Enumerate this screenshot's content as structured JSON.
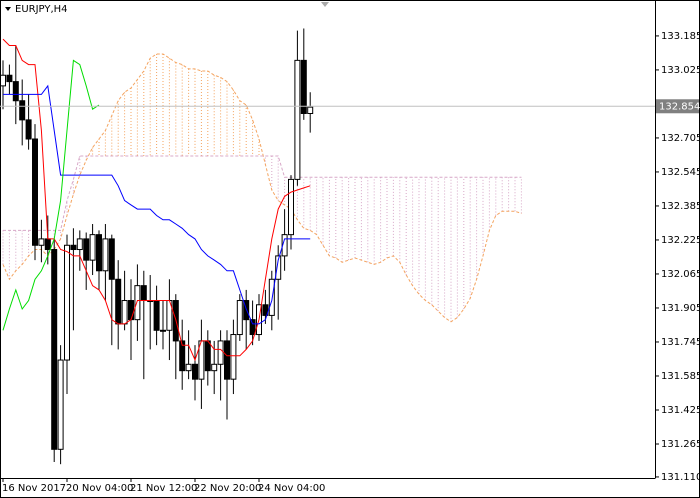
{
  "chart_data": {
    "type": "candlestick",
    "title": "EURJPY,H4",
    "categories": [
      "16 Nov 2017",
      null,
      null,
      null,
      null,
      null,
      null,
      null,
      null,
      null,
      "20 Nov 04:00",
      null,
      null,
      null,
      null,
      null,
      null,
      null,
      null,
      null,
      "21 Nov 12:00",
      null,
      null,
      null,
      null,
      null,
      null,
      null,
      null,
      null,
      "22 Nov 20:00",
      null,
      null,
      null,
      null,
      null,
      null,
      null,
      null,
      null,
      "24 Nov 04:00",
      null,
      null,
      null,
      null,
      null,
      null,
      null,
      null,
      null,
      null,
      null,
      null,
      null,
      null,
      null,
      null,
      null,
      null,
      null,
      null,
      null,
      null,
      null,
      null,
      null,
      null,
      null,
      null,
      null,
      null,
      null,
      null,
      null,
      null,
      null,
      null,
      null,
      null,
      null,
      null,
      null
    ],
    "open": [
      132.95,
      133.0,
      132.97,
      132.88,
      132.79,
      132.7,
      132.2,
      132.23,
      132.18,
      131.24,
      131.66,
      132.2,
      132.18,
      132.23,
      132.13,
      132.25,
      132.08,
      132.23,
      132.04,
      131.83,
      131.94,
      131.85,
      132.01,
      131.94,
      131.94,
      131.8,
      131.8,
      131.94,
      131.75,
      131.61,
      131.64,
      131.57,
      131.75,
      131.61,
      131.64,
      131.75,
      131.57,
      131.78,
      131.94,
      131.85,
      131.78,
      131.92,
      131.87,
      132.04,
      132.15,
      132.25,
      132.51,
      133.07,
      132.82,
      null,
      null,
      null,
      null,
      null,
      null,
      null,
      null,
      null,
      null,
      null,
      null,
      null,
      null,
      null,
      null,
      null,
      null,
      null,
      null,
      null,
      null,
      null,
      null,
      null,
      null,
      null,
      null,
      null,
      null,
      null,
      null,
      null
    ],
    "high": [
      133.07,
      133.05,
      133.14,
      132.98,
      132.91,
      132.77,
      132.32,
      132.34,
      132.23,
      131.73,
      132.25,
      132.28,
      132.27,
      132.26,
      132.3,
      132.27,
      132.3,
      132.25,
      132.13,
      132.08,
      132.04,
      132.11,
      132.08,
      132.06,
      132.01,
      131.94,
      132.04,
      131.97,
      131.85,
      131.8,
      131.73,
      131.85,
      131.8,
      131.75,
      131.8,
      131.8,
      131.85,
      131.97,
      131.99,
      131.94,
      131.97,
      131.99,
      132.08,
      132.2,
      132.37,
      132.53,
      133.21,
      133.22,
      132.92,
      null,
      null,
      null,
      null,
      null,
      null,
      null,
      null,
      null,
      null,
      null,
      null,
      null,
      null,
      null,
      null,
      null,
      null,
      null,
      null,
      null,
      null,
      null,
      null,
      null,
      null,
      null,
      null,
      null,
      null,
      null,
      null,
      null
    ],
    "low": [
      132.84,
      132.91,
      132.77,
      132.67,
      132.65,
      132.13,
      132.12,
      132.11,
      131.18,
      131.17,
      131.5,
      131.8,
      132.08,
      131.99,
      132.06,
      131.99,
      131.94,
      131.73,
      131.71,
      131.8,
      131.66,
      131.75,
      131.57,
      131.71,
      131.73,
      131.71,
      131.66,
      131.57,
      131.52,
      131.57,
      131.47,
      131.43,
      131.54,
      131.5,
      131.47,
      131.38,
      131.5,
      131.75,
      131.71,
      131.73,
      131.75,
      131.83,
      131.8,
      131.85,
      132.08,
      132.18,
      132.48,
      132.79,
      132.73,
      null,
      null,
      null,
      null,
      null,
      null,
      null,
      null,
      null,
      null,
      null,
      null,
      null,
      null,
      null,
      null,
      null,
      null,
      null,
      null,
      null,
      null,
      null,
      null,
      null,
      null,
      null,
      null,
      null,
      null,
      null,
      null,
      null
    ],
    "close": [
      133.0,
      132.97,
      132.88,
      132.79,
      132.7,
      132.2,
      132.23,
      132.18,
      131.24,
      131.66,
      132.2,
      132.18,
      132.23,
      132.13,
      132.25,
      132.08,
      132.23,
      132.04,
      131.83,
      131.94,
      131.85,
      132.01,
      131.94,
      131.94,
      131.8,
      131.8,
      131.94,
      131.75,
      131.61,
      131.64,
      131.57,
      131.75,
      131.61,
      131.64,
      131.75,
      131.57,
      131.78,
      131.94,
      131.85,
      131.78,
      131.92,
      131.87,
      132.04,
      132.15,
      132.25,
      132.51,
      133.07,
      132.82,
      132.85,
      null,
      null,
      null,
      null,
      null,
      null,
      null,
      null,
      null,
      null,
      null,
      null,
      null,
      null,
      null,
      null,
      null,
      null,
      null,
      null,
      null,
      null,
      null,
      null,
      null,
      null,
      null,
      null,
      null,
      null,
      null,
      null,
      null
    ],
    "bull_color": "#ffffff",
    "bear_color": "#000000",
    "series": [
      {
        "color": "#ff0000",
        "values": [
          133.17,
          133.14,
          133.14,
          133.07,
          133.05,
          133.05,
          132.74,
          132.23,
          132.23,
          132.18,
          132.17,
          132.15,
          132.15,
          132.08,
          132.01,
          131.99,
          131.94,
          131.85,
          131.83,
          131.83,
          131.85,
          131.94,
          131.94,
          131.94,
          131.94,
          131.94,
          131.94,
          131.85,
          131.73,
          131.73,
          131.66,
          131.75,
          131.75,
          131.71,
          131.71,
          131.68,
          131.68,
          131.68,
          131.71,
          131.75,
          131.85,
          132.04,
          132.23,
          132.37,
          132.43,
          132.45,
          132.46,
          132.47,
          132.48,
          null,
          null,
          null,
          null,
          null,
          null,
          null,
          null,
          null,
          null,
          null,
          null,
          null,
          null,
          null,
          null,
          null,
          null,
          null,
          null,
          null,
          null,
          null,
          null,
          null,
          null,
          null,
          null,
          null,
          null,
          null,
          null,
          null
        ]
      },
      {
        "color": "#0000ff",
        "values": [
          132.91,
          132.91,
          132.91,
          132.91,
          132.91,
          132.91,
          132.91,
          132.95,
          132.74,
          132.53,
          132.53,
          132.53,
          132.53,
          132.53,
          132.53,
          132.53,
          132.53,
          132.53,
          132.48,
          132.41,
          132.39,
          132.37,
          132.37,
          132.37,
          132.34,
          132.32,
          132.32,
          132.3,
          132.28,
          132.25,
          132.23,
          132.18,
          132.15,
          132.13,
          132.11,
          132.08,
          132.08,
          131.99,
          131.9,
          131.83,
          131.83,
          131.85,
          131.94,
          132.13,
          132.23,
          132.23,
          132.23,
          132.23,
          132.23,
          null,
          null,
          null,
          null,
          null,
          null,
          null,
          null,
          null,
          null,
          null,
          null,
          null,
          null,
          null,
          null,
          null,
          null,
          null,
          null,
          null,
          null,
          null,
          null,
          null,
          null,
          null,
          null,
          null,
          null,
          null,
          null,
          null
        ]
      },
      {
        "color": "#00dd00",
        "values": [
          131.8,
          131.9,
          131.99,
          131.9,
          131.94,
          132.04,
          132.08,
          132.15,
          132.23,
          132.41,
          132.74,
          133.07,
          133.05,
          132.95,
          132.84,
          132.86,
          null,
          null,
          null,
          null,
          null,
          null,
          null,
          null,
          null,
          null,
          null,
          null,
          null,
          null,
          null,
          null,
          null,
          null,
          null,
          null,
          null,
          null,
          null,
          null,
          null,
          null,
          null,
          null,
          null,
          null,
          null,
          null,
          null,
          null,
          null,
          null,
          null,
          null,
          null,
          null,
          null,
          null,
          null,
          null,
          null,
          null,
          null,
          null,
          null,
          null,
          null,
          null,
          null,
          null,
          null,
          null,
          null,
          null,
          null,
          null,
          null,
          null,
          null,
          null,
          null,
          null
        ]
      },
      {
        "color": "#f4a460",
        "dashed": true,
        "values": [
          132.11,
          132.04,
          132.08,
          132.11,
          132.15,
          132.18,
          132.18,
          132.15,
          132.18,
          132.23,
          132.34,
          132.44,
          132.53,
          132.6,
          132.66,
          132.7,
          132.74,
          132.81,
          132.88,
          132.92,
          132.94,
          132.98,
          133.02,
          133.08,
          133.1,
          133.1,
          133.08,
          133.06,
          133.05,
          133.03,
          133.03,
          133.02,
          133.02,
          133.0,
          132.99,
          132.97,
          132.93,
          132.88,
          132.86,
          132.79,
          132.7,
          132.58,
          132.46,
          132.41,
          132.39,
          132.37,
          132.32,
          132.28,
          132.27,
          132.25,
          132.2,
          132.15,
          132.14,
          132.12,
          132.13,
          132.14,
          132.13,
          132.12,
          132.11,
          132.12,
          132.14,
          132.15,
          132.12,
          132.06,
          132.01,
          131.97,
          131.94,
          131.92,
          131.89,
          131.86,
          131.84,
          131.86,
          131.9,
          131.95,
          132.04,
          132.15,
          132.27,
          132.34,
          132.36,
          132.36,
          132.36,
          132.35
        ]
      },
      {
        "color": "#d8a8c8",
        "dashed": true,
        "values": [
          132.27,
          132.27,
          132.27,
          132.27,
          132.27,
          132.27,
          132.27,
          132.27,
          132.27,
          132.27,
          132.41,
          132.51,
          132.62,
          132.62,
          132.62,
          132.62,
          132.62,
          132.62,
          132.62,
          132.62,
          132.62,
          132.62,
          132.62,
          132.62,
          132.62,
          132.62,
          132.62,
          132.62,
          132.62,
          132.62,
          132.62,
          132.62,
          132.62,
          132.62,
          132.62,
          132.62,
          132.62,
          132.62,
          132.62,
          132.62,
          132.62,
          132.62,
          132.62,
          132.62,
          132.52,
          132.52,
          132.52,
          132.52,
          132.52,
          132.52,
          132.52,
          132.52,
          132.52,
          132.52,
          132.52,
          132.52,
          132.52,
          132.52,
          132.52,
          132.52,
          132.52,
          132.52,
          132.52,
          132.52,
          132.52,
          132.52,
          132.52,
          132.52,
          132.52,
          132.52,
          132.52,
          132.52,
          132.52,
          132.52,
          132.52,
          132.52,
          132.52,
          132.52,
          132.52,
          132.52,
          132.52,
          132.52
        ]
      }
    ],
    "cloud": true,
    "last_price": 132.854,
    "ylim": [
      131.105,
      133.354
    ],
    "yticks": [
      133.185,
      133.025,
      132.705,
      132.545,
      132.385,
      132.225,
      132.065,
      131.905,
      131.745,
      131.585,
      131.425,
      131.265,
      {
        "value": 131.11,
        "label": "131.110"
      }
    ]
  }
}
